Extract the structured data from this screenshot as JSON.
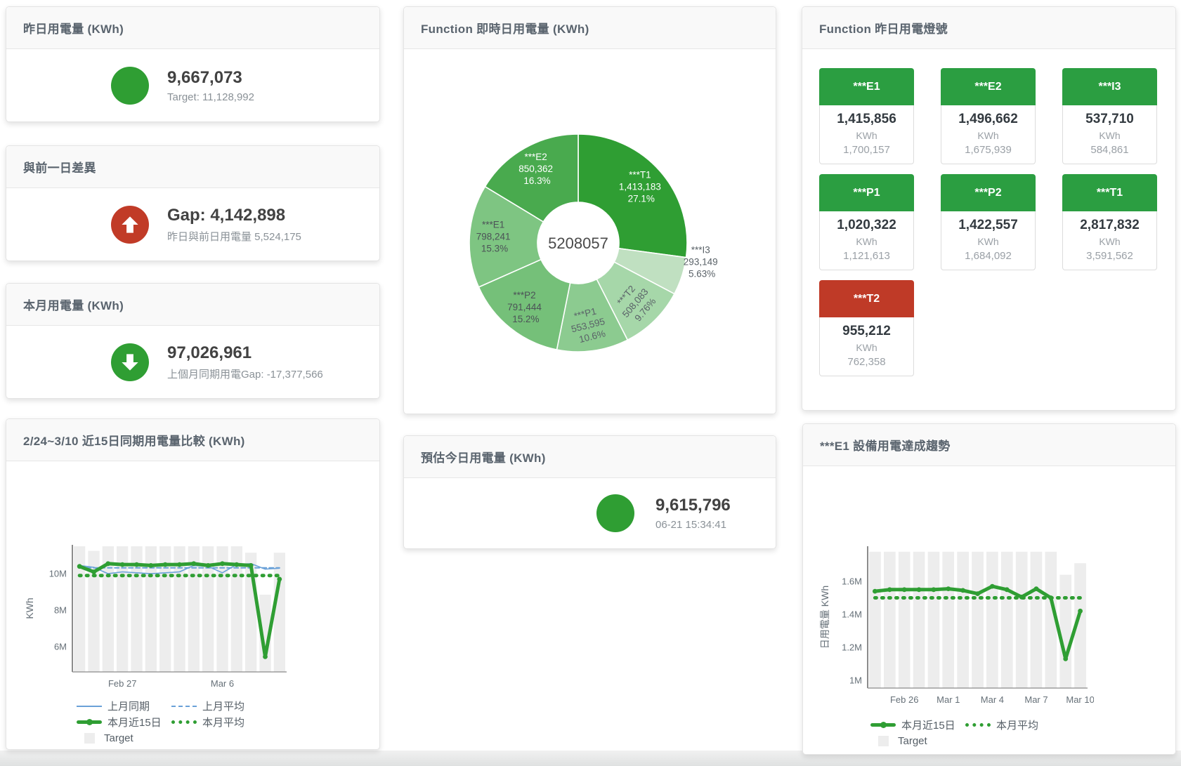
{
  "kpi_cards": [
    {
      "title": "昨日用電量 (KWh)",
      "value": "9,667,073",
      "subtitle": "Target: 11,128,992",
      "indicator": "circle",
      "indicator_color": "#2f9e33"
    },
    {
      "title": "與前一日差異",
      "value": "Gap: 4,142,898",
      "subtitle": "昨日與前日用電量 5,524,175",
      "indicator": "arrow-up",
      "indicator_color": "#c13b27"
    },
    {
      "title": "本月用電量 (KWh)",
      "value": "97,026,961",
      "subtitle": "上個月同期用電Gap: -17,377,566",
      "indicator": "arrow-down",
      "indicator_color": "#2f9e33"
    }
  ],
  "estimate_card": {
    "title": "預估今日用電量 (KWh)",
    "value": "9,615,796",
    "subtitle": "06-21 15:34:41",
    "indicator_color": "#2f9e33"
  },
  "tiles_card": {
    "title": "Function 昨日用電燈號",
    "unit": "KWh",
    "status_colors": {
      "green": "#2b9e41",
      "red": "#bf3a27"
    },
    "tiles": [
      {
        "label": "***E1",
        "value": "1,415,856",
        "target": "1,700,157",
        "status": "green"
      },
      {
        "label": "***E2",
        "value": "1,496,662",
        "target": "1,675,939",
        "status": "green"
      },
      {
        "label": "***I3",
        "value": "537,710",
        "target": "584,861",
        "status": "green"
      },
      {
        "label": "***P1",
        "value": "1,020,322",
        "target": "1,121,613",
        "status": "green"
      },
      {
        "label": "***P2",
        "value": "1,422,557",
        "target": "1,684,092",
        "status": "green"
      },
      {
        "label": "***T1",
        "value": "2,817,832",
        "target": "3,591,562",
        "status": "green"
      },
      {
        "label": "***T2",
        "value": "955,212",
        "target": "762,358",
        "status": "red"
      }
    ]
  },
  "donut_card": {
    "title": "Function 即時日用電量 (KWh)"
  },
  "compare_card": {
    "title": "2/24~3/10 近15日同期用電量比較 (KWh)"
  },
  "trend_card": {
    "title": "***E1 設備用電達成趨勢"
  },
  "chart_data": [
    {
      "id": "realtime-donut",
      "type": "pie",
      "title": "Function 即時日用電量 (KWh)",
      "center_total": "5208057",
      "unit": "KWh",
      "slices": [
        {
          "name": "***T1",
          "value": 1413183,
          "value_label": "1,413,183",
          "pct": "27.1%",
          "color": "#2f9e33",
          "text": "#ffffff"
        },
        {
          "name": "***I3",
          "value": 293149,
          "value_label": "293,149",
          "pct": "5.63%",
          "color": "#c0e0c1",
          "text": "#5a6268",
          "outside": true
        },
        {
          "name": "***T2",
          "value": 508083,
          "value_label": "508,083",
          "pct": "9.76%",
          "color": "#a6d7a9",
          "text": "#5a6268",
          "rotate": -50
        },
        {
          "name": "***P1",
          "value": 553595,
          "value_label": "553,595",
          "pct": "10.6%",
          "color": "#8ccb90",
          "text": "#5a6268",
          "rotate": -14
        },
        {
          "name": "***P2",
          "value": 791444,
          "value_label": "791,444",
          "pct": "15.2%",
          "color": "#75c079",
          "text": "#4c5257"
        },
        {
          "name": "***E1",
          "value": 798241,
          "value_label": "798,241",
          "pct": "15.3%",
          "color": "#7ec582",
          "text": "#4c5257"
        },
        {
          "name": "***E2",
          "value": 850362,
          "value_label": "850,362",
          "pct": "16.3%",
          "color": "#49aa4e",
          "text": "#ffffff"
        }
      ]
    },
    {
      "id": "compare-chart",
      "type": "line",
      "title": "2/24~3/10 近15日同期用電量比較 (KWh)",
      "ylabel": "KWh",
      "x": [
        "2/24",
        "2/25",
        "2/26",
        "2/27",
        "2/28",
        "3/1",
        "3/2",
        "3/3",
        "3/4",
        "3/5",
        "3/6",
        "3/7",
        "3/8",
        "3/9",
        "3/10"
      ],
      "x_ticks": [
        {
          "i": 3,
          "label": "Feb 27"
        },
        {
          "i": 10,
          "label": "Mar 6"
        }
      ],
      "ylim": [
        4620000,
        11580000
      ],
      "y_ticks": [
        {
          "v": 6000000,
          "label": "6M"
        },
        {
          "v": 8000000,
          "label": "8M"
        },
        {
          "v": 10000000,
          "label": "10M"
        }
      ],
      "grid": false,
      "legend_position": "bottom",
      "series": [
        {
          "name": "Target",
          "kind": "bar",
          "color": "#ededed",
          "values": [
            11500000,
            11250000,
            11500000,
            11500000,
            11500000,
            11500000,
            11500000,
            11500000,
            11500000,
            11500000,
            11500000,
            11500000,
            11150000,
            8850000,
            11150000
          ]
        },
        {
          "name": "上月同期",
          "kind": "line",
          "color": "#6aa1d8",
          "width": 1.6,
          "values": [
            10450000,
            10350000,
            10000000,
            10100000,
            10050000,
            10000000,
            10050000,
            10100000,
            10450000,
            10400000,
            10050000,
            10500000,
            10550000,
            10250000,
            10300000
          ]
        },
        {
          "name": "上月平均",
          "kind": "line",
          "color": "#6aa1d8",
          "width": 2,
          "dash": "6 4",
          "const": 10320000
        },
        {
          "name": "本月近15日",
          "kind": "line",
          "color": "#2f9e33",
          "width": 5,
          "markers": true,
          "values": [
            10400000,
            10100000,
            10550000,
            10500000,
            10500000,
            10450000,
            10500000,
            10500000,
            10550000,
            10450000,
            10550000,
            10500000,
            10450000,
            5450000,
            9700000
          ]
        },
        {
          "name": "本月平均",
          "kind": "line",
          "color": "#2f9e33",
          "width": 5,
          "dash": "2 8",
          "const": 9900000
        }
      ],
      "legend_rows": [
        [
          {
            "style": "line-blue",
            "label": "上月同期"
          },
          {
            "style": "dash-blue",
            "label": "上月平均"
          }
        ],
        [
          {
            "style": "thick-green",
            "label": "本月近15日"
          },
          {
            "style": "dot-green",
            "label": "本月平均"
          }
        ],
        [
          {
            "style": "box-gray",
            "label": "Target"
          }
        ]
      ]
    },
    {
      "id": "trend-chart",
      "type": "line",
      "title": "***E1 設備用電達成趨勢",
      "ylabel": "日用電量 KWh",
      "x": [
        "2/24",
        "2/25",
        "2/26",
        "2/27",
        "2/28",
        "3/1",
        "3/2",
        "3/3",
        "3/4",
        "3/5",
        "3/6",
        "3/7",
        "3/8",
        "3/9",
        "3/10"
      ],
      "x_ticks": [
        {
          "i": 2,
          "label": "Feb 26"
        },
        {
          "i": 5,
          "label": "Mar 1"
        },
        {
          "i": 8,
          "label": "Mar 4"
        },
        {
          "i": 11,
          "label": "Mar 7"
        },
        {
          "i": 14,
          "label": "Mar 10"
        }
      ],
      "ylim": [
        953000,
        1813000
      ],
      "y_ticks": [
        {
          "v": 1000000,
          "label": "1M"
        },
        {
          "v": 1200000,
          "label": "1.2M"
        },
        {
          "v": 1400000,
          "label": "1.4M"
        },
        {
          "v": 1600000,
          "label": "1.6M"
        }
      ],
      "grid": false,
      "legend_position": "bottom",
      "series": [
        {
          "name": "Target",
          "kind": "bar",
          "color": "#ededed",
          "values": [
            1780000,
            1780000,
            1780000,
            1780000,
            1780000,
            1780000,
            1780000,
            1780000,
            1780000,
            1780000,
            1780000,
            1780000,
            1780000,
            1640000,
            1710000
          ]
        },
        {
          "name": "本月近15日",
          "kind": "line",
          "color": "#2f9e33",
          "width": 5,
          "markers": true,
          "values": [
            1540000,
            1550000,
            1550000,
            1550000,
            1550000,
            1555000,
            1545000,
            1525000,
            1570000,
            1550000,
            1505000,
            1555000,
            1500000,
            1130000,
            1420000
          ]
        },
        {
          "name": "本月平均",
          "kind": "line",
          "color": "#2f9e33",
          "width": 5,
          "dash": "2 8",
          "const": 1500000
        }
      ],
      "legend_rows": [
        [
          {
            "style": "thick-green",
            "label": "本月近15日"
          },
          {
            "style": "dot-green",
            "label": "本月平均"
          }
        ],
        [
          {
            "style": "box-gray",
            "label": "Target"
          }
        ]
      ]
    }
  ]
}
